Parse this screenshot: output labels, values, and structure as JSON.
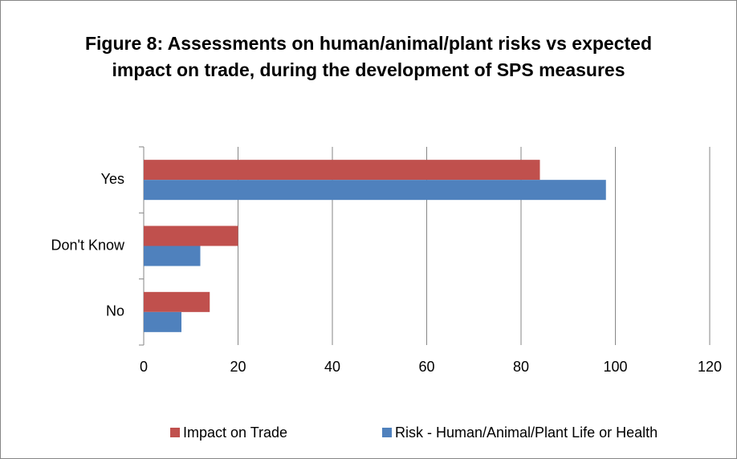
{
  "chart_data": {
    "type": "bar",
    "orientation": "horizontal",
    "title": "Figure 8: Assessments on human/animal/plant risks vs expected impact on trade, during the development of SPS measures",
    "categories": [
      "Yes",
      "Don't Know",
      "No"
    ],
    "series": [
      {
        "name": "Impact on Trade",
        "color": "#c0504d",
        "values": [
          84,
          20,
          14
        ]
      },
      {
        "name": "Risk - Human/Animal/Plant Life or Health",
        "color": "#4f81bd",
        "values": [
          98,
          12,
          8
        ]
      }
    ],
    "xlim": [
      0,
      120
    ],
    "xticks": [
      0,
      20,
      40,
      60,
      80,
      100,
      120
    ],
    "grid": true,
    "legend": "bottom"
  }
}
